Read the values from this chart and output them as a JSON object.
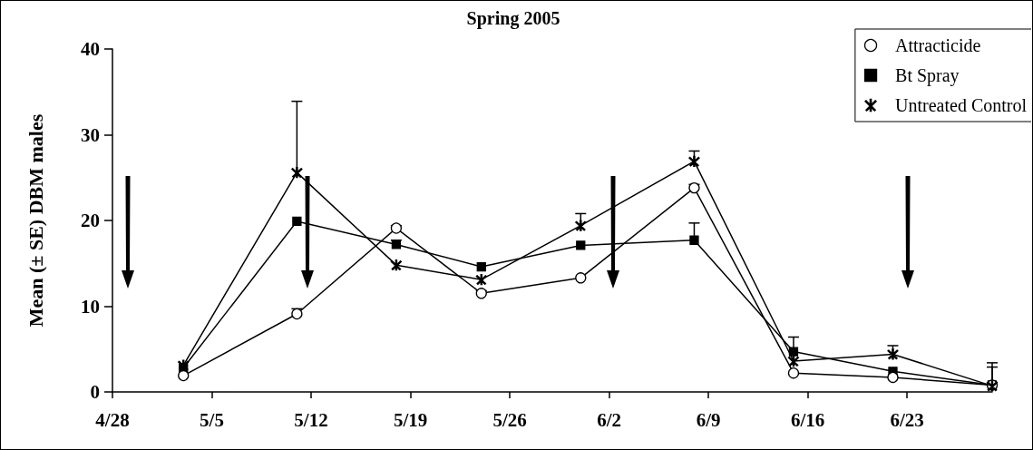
{
  "chart_data": {
    "type": "line",
    "title": "Spring 2005",
    "ylabel": "Mean (± SE) DBM males",
    "x": [
      "--05-03",
      "--05-11",
      "--05-18",
      "--05-24",
      "--05-31",
      "--06-08",
      "--06-15",
      "--06-22",
      "--06-29"
    ],
    "xlim": [
      "--04-28",
      "--06-29"
    ],
    "xticks": [
      {
        "value": "--04-28",
        "label": "4/28"
      },
      {
        "value": "--05-05",
        "label": "5/5"
      },
      {
        "value": "--05-12",
        "label": "5/12"
      },
      {
        "value": "--05-19",
        "label": "5/19"
      },
      {
        "value": "--05-26",
        "label": "5/26"
      },
      {
        "value": "--06-02",
        "label": "6/2"
      },
      {
        "value": "--06-09",
        "label": "6/9"
      },
      {
        "value": "--06-16",
        "label": "6/16"
      },
      {
        "value": "--06-23",
        "label": "6/23"
      }
    ],
    "ylim": [
      0,
      40
    ],
    "yticks": [
      0,
      10,
      20,
      30,
      40
    ],
    "grid": false,
    "legend": "top right",
    "line_style": "solid",
    "series": [
      {
        "name": "Attracticide",
        "color": "#000000",
        "marker": "circle",
        "values": [
          1.9,
          9.1,
          19.1,
          11.5,
          13.3,
          23.8,
          2.2,
          1.7,
          0.8
        ],
        "errors": [
          null,
          [
            9.1,
            9.7
          ],
          [
            19.1,
            19.4
          ],
          [
            11.5,
            11.8
          ],
          null,
          [
            23.8,
            24.2
          ],
          null,
          null,
          null
        ]
      },
      {
        "name": "Bt Spray",
        "color": "#000000",
        "marker": "square",
        "values": [
          2.8,
          19.9,
          17.2,
          14.6,
          17.1,
          17.7,
          4.7,
          2.4,
          0.8
        ],
        "errors": [
          null,
          null,
          [
            17.2,
            17.7
          ],
          null,
          null,
          [
            17.7,
            19.7
          ],
          [
            4.7,
            6.4
          ],
          null,
          [
            0.8,
            2.9
          ]
        ]
      },
      {
        "name": "Untreated Control",
        "color": "#000000",
        "marker": "cross",
        "values": [
          3.1,
          25.6,
          14.8,
          13.1,
          19.4,
          26.9,
          3.6,
          4.4,
          0.7
        ],
        "errors": [
          null,
          [
            25.6,
            33.9
          ],
          null,
          null,
          [
            19.4,
            20.8
          ],
          [
            26.9,
            28.1
          ],
          null,
          [
            4.4,
            5.4
          ],
          [
            0.7,
            3.4
          ]
        ]
      }
    ]
  }
}
